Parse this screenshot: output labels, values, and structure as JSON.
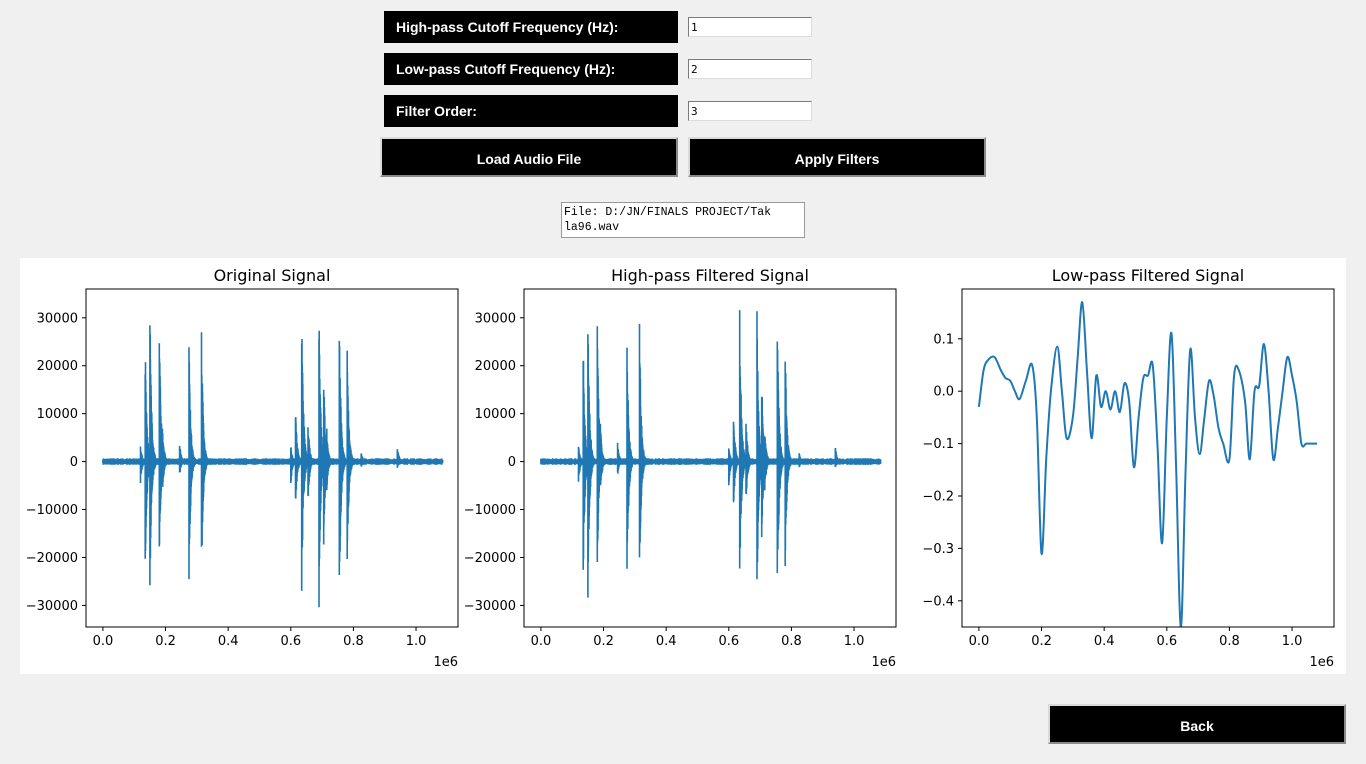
{
  "form": {
    "highpass_label": "High-pass Cutoff Frequency (Hz):",
    "highpass_value": "1",
    "lowpass_label": "Low-pass Cutoff Frequency (Hz):",
    "lowpass_value": "2",
    "order_label": "Filter Order:",
    "order_value": "3",
    "load_button": "Load Audio File",
    "apply_button": "Apply Filters"
  },
  "file_info": "File: D:/JN/FINALS PROJECT/Tak\nla96.wav",
  "back_button": "Back",
  "colors": {
    "line": "#1f77b4",
    "button_bg": "#000000",
    "page_bg": "#f0f0f0"
  },
  "chart_data": [
    {
      "type": "line",
      "title": "Original Signal",
      "xlabel": "",
      "ylabel": "",
      "x_offset_text": "1e6",
      "xlim": [
        -0.054,
        1.134
      ],
      "ylim": [
        -34500,
        36000
      ],
      "xticks": [
        0.0,
        0.2,
        0.4,
        0.6,
        0.8,
        1.0
      ],
      "xtick_labels": [
        "0.0",
        "0.2",
        "0.4",
        "0.6",
        "0.8",
        "1.0"
      ],
      "yticks": [
        30000,
        20000,
        10000,
        0,
        -10000,
        -20000,
        -30000
      ],
      "ytick_labels": [
        "30000",
        "20000",
        "10000",
        "0",
        "−10000",
        "−20000",
        "−30000"
      ],
      "bursts": [
        {
          "x": 0.12,
          "max": 3500,
          "min": -4500
        },
        {
          "x": 0.135,
          "max": 25000,
          "min": -24500
        },
        {
          "x": 0.15,
          "max": 33000,
          "min": -28500
        },
        {
          "x": 0.18,
          "max": 31000,
          "min": -24000
        },
        {
          "x": 0.19,
          "max": 8000,
          "min": -7000
        },
        {
          "x": 0.245,
          "max": 4000,
          "min": -3000
        },
        {
          "x": 0.275,
          "max": 25000,
          "min": -25500
        },
        {
          "x": 0.315,
          "max": 29000,
          "min": -25000
        },
        {
          "x": 0.6,
          "max": 3500,
          "min": -5000
        },
        {
          "x": 0.615,
          "max": 11500,
          "min": -10000
        },
        {
          "x": 0.635,
          "max": 33000,
          "min": -27000
        },
        {
          "x": 0.655,
          "max": 9000,
          "min": -9000
        },
        {
          "x": 0.69,
          "max": 33000,
          "min": -30500
        },
        {
          "x": 0.705,
          "max": 19000,
          "min": -18000
        },
        {
          "x": 0.715,
          "max": 7000,
          "min": -6000
        },
        {
          "x": 0.755,
          "max": 31000,
          "min": -31000
        },
        {
          "x": 0.78,
          "max": 26000,
          "min": -23500
        },
        {
          "x": 0.825,
          "max": 2000,
          "min": -1500
        },
        {
          "x": 0.94,
          "max": 3500,
          "min": -1500
        }
      ]
    },
    {
      "type": "line",
      "title": "High-pass Filtered Signal",
      "xlabel": "",
      "ylabel": "",
      "x_offset_text": "1e6",
      "xlim": [
        -0.054,
        1.134
      ],
      "ylim": [
        -34500,
        36000
      ],
      "xticks": [
        0.0,
        0.2,
        0.4,
        0.6,
        0.8,
        1.0
      ],
      "xtick_labels": [
        "0.0",
        "0.2",
        "0.4",
        "0.6",
        "0.8",
        "1.0"
      ],
      "yticks": [
        30000,
        20000,
        10000,
        0,
        -10000,
        -20000,
        -30000
      ],
      "ytick_labels": [
        "30000",
        "20000",
        "10000",
        "0",
        "−10000",
        "−20000",
        "−30000"
      ],
      "bursts": [
        {
          "x": 0.12,
          "max": 3500,
          "min": -4500
        },
        {
          "x": 0.135,
          "max": 25000,
          "min": -24500
        },
        {
          "x": 0.15,
          "max": 33000,
          "min": -28500
        },
        {
          "x": 0.18,
          "max": 31000,
          "min": -24000
        },
        {
          "x": 0.19,
          "max": 8000,
          "min": -7000
        },
        {
          "x": 0.245,
          "max": 4000,
          "min": -3000
        },
        {
          "x": 0.275,
          "max": 25000,
          "min": -25500
        },
        {
          "x": 0.315,
          "max": 29000,
          "min": -25000
        },
        {
          "x": 0.6,
          "max": 3500,
          "min": -5000
        },
        {
          "x": 0.615,
          "max": 11500,
          "min": -10000
        },
        {
          "x": 0.635,
          "max": 33000,
          "min": -27000
        },
        {
          "x": 0.655,
          "max": 9000,
          "min": -9000
        },
        {
          "x": 0.69,
          "max": 33000,
          "min": -30500
        },
        {
          "x": 0.705,
          "max": 19000,
          "min": -18000
        },
        {
          "x": 0.715,
          "max": 7000,
          "min": -6000
        },
        {
          "x": 0.755,
          "max": 31000,
          "min": -31000
        },
        {
          "x": 0.78,
          "max": 26000,
          "min": -23500
        },
        {
          "x": 0.825,
          "max": 2000,
          "min": -1500
        },
        {
          "x": 0.94,
          "max": 3500,
          "min": -1500
        }
      ]
    },
    {
      "type": "line",
      "title": "Low-pass Filtered Signal",
      "xlabel": "",
      "ylabel": "",
      "x_offset_text": "1e6",
      "xlim": [
        -0.054,
        1.134
      ],
      "ylim": [
        -0.45,
        0.195
      ],
      "xticks": [
        0.0,
        0.2,
        0.4,
        0.6,
        0.8,
        1.0
      ],
      "xtick_labels": [
        "0.0",
        "0.2",
        "0.4",
        "0.6",
        "0.8",
        "1.0"
      ],
      "yticks": [
        0.1,
        0.0,
        -0.1,
        -0.2,
        -0.3,
        -0.4
      ],
      "ytick_labels": [
        "0.1",
        "0.0",
        "−0.1",
        "−0.2",
        "−0.3",
        "−0.4"
      ],
      "x": [
        0.0,
        0.015,
        0.03,
        0.05,
        0.07,
        0.085,
        0.1,
        0.115,
        0.13,
        0.15,
        0.17,
        0.185,
        0.2,
        0.215,
        0.23,
        0.25,
        0.265,
        0.28,
        0.3,
        0.315,
        0.33,
        0.345,
        0.36,
        0.375,
        0.39,
        0.405,
        0.42,
        0.435,
        0.45,
        0.465,
        0.48,
        0.495,
        0.51,
        0.525,
        0.54,
        0.555,
        0.57,
        0.585,
        0.6,
        0.615,
        0.63,
        0.645,
        0.66,
        0.675,
        0.69,
        0.705,
        0.72,
        0.735,
        0.75,
        0.765,
        0.78,
        0.8,
        0.815,
        0.83,
        0.85,
        0.865,
        0.88,
        0.895,
        0.91,
        0.925,
        0.94,
        0.955,
        0.97,
        0.985,
        1.0,
        1.015,
        1.03,
        1.045,
        1.06,
        1.08
      ],
      "y": [
        -0.03,
        0.04,
        0.06,
        0.065,
        0.04,
        0.025,
        0.02,
        0.0,
        -0.015,
        0.02,
        0.05,
        -0.05,
        -0.31,
        -0.13,
        0.0,
        0.085,
        0.0,
        -0.09,
        -0.05,
        0.06,
        0.17,
        0.04,
        -0.09,
        0.03,
        -0.03,
        0.0,
        -0.035,
        0.0,
        -0.04,
        0.015,
        -0.02,
        -0.145,
        -0.05,
        0.025,
        0.03,
        0.05,
        -0.1,
        -0.29,
        -0.05,
        0.11,
        -0.15,
        -0.45,
        -0.15,
        0.08,
        -0.05,
        -0.12,
        -0.05,
        0.02,
        -0.01,
        -0.07,
        -0.1,
        -0.13,
        0.03,
        0.04,
        -0.02,
        -0.13,
        0.0,
        0.01,
        0.09,
        0.0,
        -0.13,
        -0.07,
        0.0,
        0.065,
        0.03,
        -0.02,
        -0.1,
        -0.1,
        -0.1,
        -0.1
      ]
    }
  ]
}
